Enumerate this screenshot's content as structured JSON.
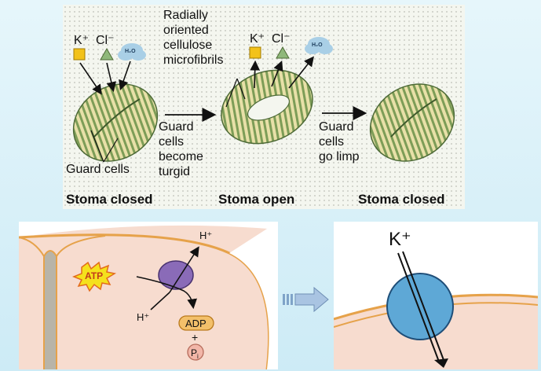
{
  "top": {
    "ion_k": "K⁺",
    "ion_cl": "Cl⁻",
    "water": "H₂O",
    "microfibril_label": "Radially\noriented\ncellulose\nmicrofibrils",
    "turgid_label": "Guard\ncells\nbecome\nturgid",
    "limp_label": "Guard\ncells\ngo limp",
    "guard_cells_label": "Guard cells",
    "caption_left": "Stoma closed",
    "caption_middle": "Stoma open",
    "caption_right": "Stoma closed"
  },
  "bottom_left": {
    "proton_top": "H⁺",
    "proton_bottom": "H⁺",
    "atp": "ATP",
    "adp": "ADP",
    "plus": "+",
    "pi": "P",
    "pi_sub": "i"
  },
  "bottom_right": {
    "k_label": "K⁺"
  },
  "colors": {
    "ring_stripe_light": "#e8e0a8",
    "ring_stripe_dark": "#7d9d57",
    "potassium_square": "#f3c21a",
    "chloride_triangle": "#8fb87a",
    "water_cloud": "#a9cfe6",
    "pump_purple": "#8a6bb8",
    "channel_blue": "#5ea8d6",
    "cell_pink": "#f7dccf",
    "membrane_orange": "#e6a24a"
  }
}
